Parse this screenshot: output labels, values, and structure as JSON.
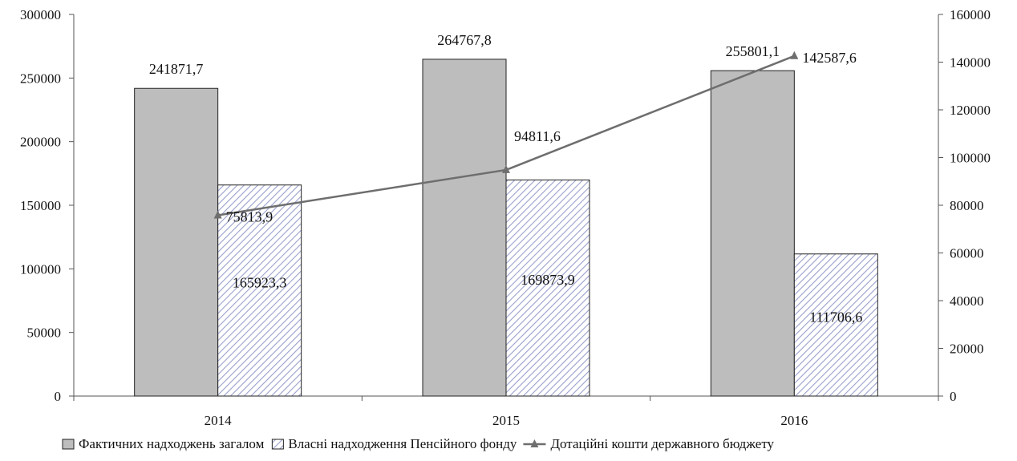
{
  "chart_data": {
    "type": "bar",
    "title": "",
    "xlabel": "",
    "ylabel": "",
    "categories": [
      "2014",
      "2015",
      "2016"
    ],
    "ylim": [
      0,
      300000
    ],
    "y2lim": [
      0,
      160000
    ],
    "yticks": [
      "0",
      "50000",
      "100000",
      "150000",
      "200000",
      "250000",
      "300000"
    ],
    "y2ticks": [
      "0",
      "20000",
      "40000",
      "60000",
      "80000",
      "100000",
      "120000",
      "140000",
      "160000"
    ],
    "grid": false,
    "legend_position": "bottom",
    "series": [
      {
        "name": "Фактичних надходжень загалом",
        "kind": "bar",
        "axis": "left",
        "color": "#bdbdbd",
        "values": [
          241871.7,
          264767.8,
          255801.1
        ],
        "labels": [
          "241871,7",
          "264767,8",
          "255801,1"
        ]
      },
      {
        "name": "Власні надходження Пенсійного фонду",
        "kind": "bar",
        "axis": "left",
        "pattern": "diagonal-hatch",
        "color": "#9aa0cc",
        "values": [
          165923.3,
          169873.9,
          111706.6
        ],
        "labels": [
          "165923,3",
          "169873,9",
          "111706,6"
        ]
      },
      {
        "name": "Дотаційні кошти державного бюджету",
        "kind": "line",
        "axis": "right",
        "marker": "triangle",
        "color": "#6e6e6e",
        "values": [
          75813.9,
          94811.6,
          142587.6
        ],
        "labels": [
          "75813,9",
          "94811,6",
          "142587,6"
        ]
      }
    ]
  }
}
